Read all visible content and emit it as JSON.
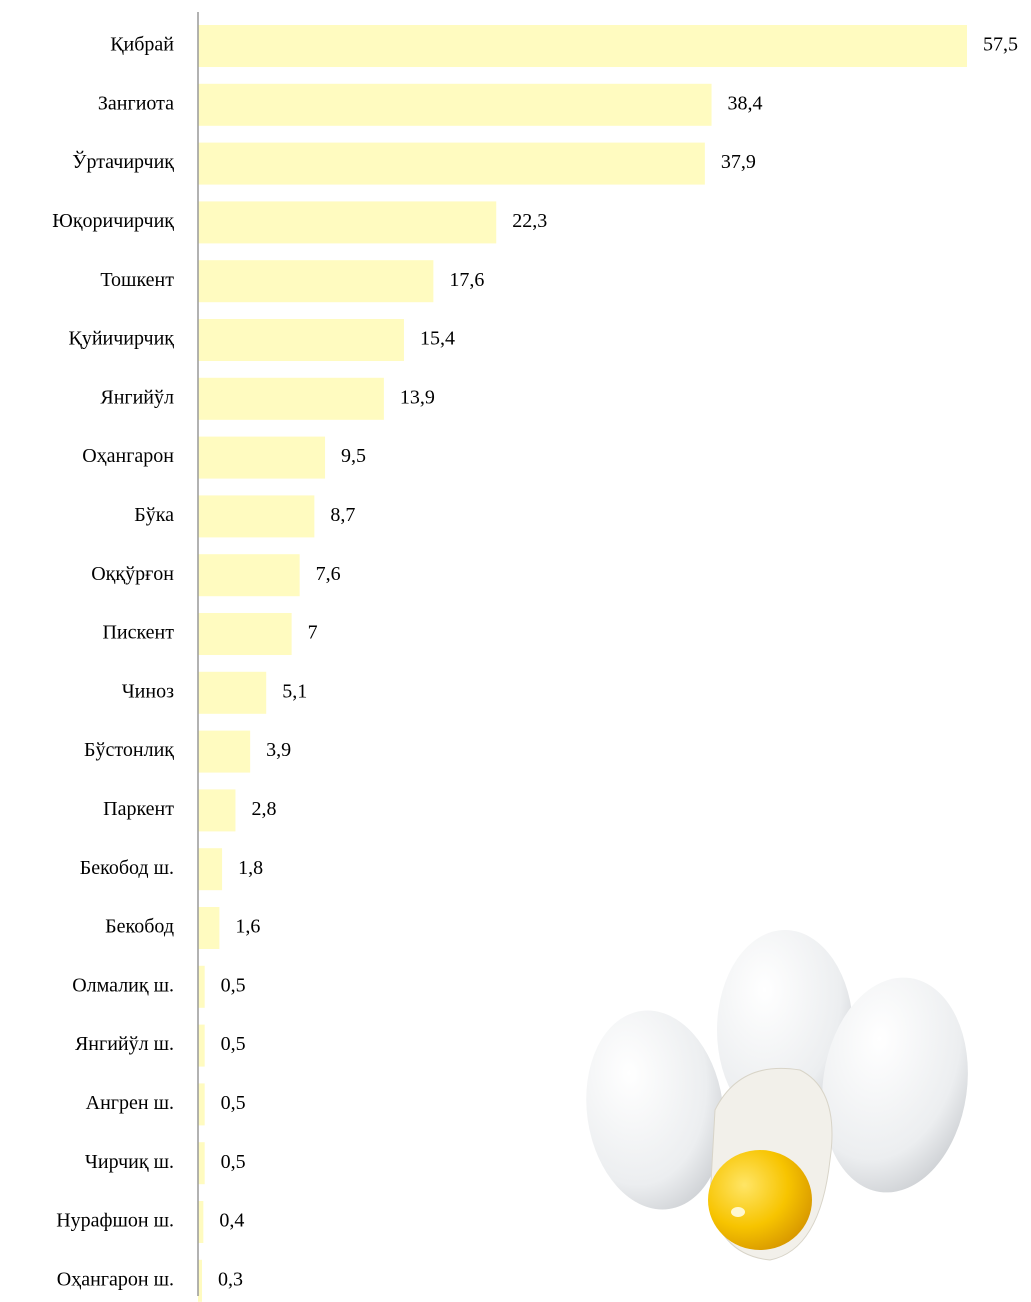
{
  "chart_data": {
    "type": "bar",
    "orientation": "horizontal",
    "categories": [
      "Қибрай",
      "Зангиота",
      "Ўртачирчиқ",
      "Юқоричирчиқ",
      "Тошкент",
      "Қуйичирчиқ",
      "Янгийўл",
      "Оҳангарон",
      "Бўка",
      "Оққўрғон",
      "Пискент",
      "Чиноз",
      "Бўстонлиқ",
      "Паркент",
      "Бекобод ш.",
      "Бекобод",
      "Олмалиқ ш.",
      "Янгийўл ш.",
      "Ангрен ш.",
      "Чирчиқ ш.",
      "Нурафшон ш.",
      "Оҳангарон ш."
    ],
    "values": [
      57.5,
      38.4,
      37.9,
      22.3,
      17.6,
      15.4,
      13.9,
      9.5,
      8.7,
      7.6,
      7,
      5.1,
      3.9,
      2.8,
      1.8,
      1.6,
      0.5,
      0.5,
      0.5,
      0.5,
      0.4,
      0.3
    ],
    "value_labels": [
      "57,5",
      "38,4",
      "37,9",
      "22,3",
      "17,6",
      "15,4",
      "13,9",
      "9,5",
      "8,7",
      "7,6",
      "7",
      "5,1",
      "3,9",
      "2,8",
      "1,8",
      "1,6",
      "0,5",
      "0,5",
      "0,5",
      "0,5",
      "0,4",
      "0,3"
    ],
    "color": "#fffbc0"
  }
}
